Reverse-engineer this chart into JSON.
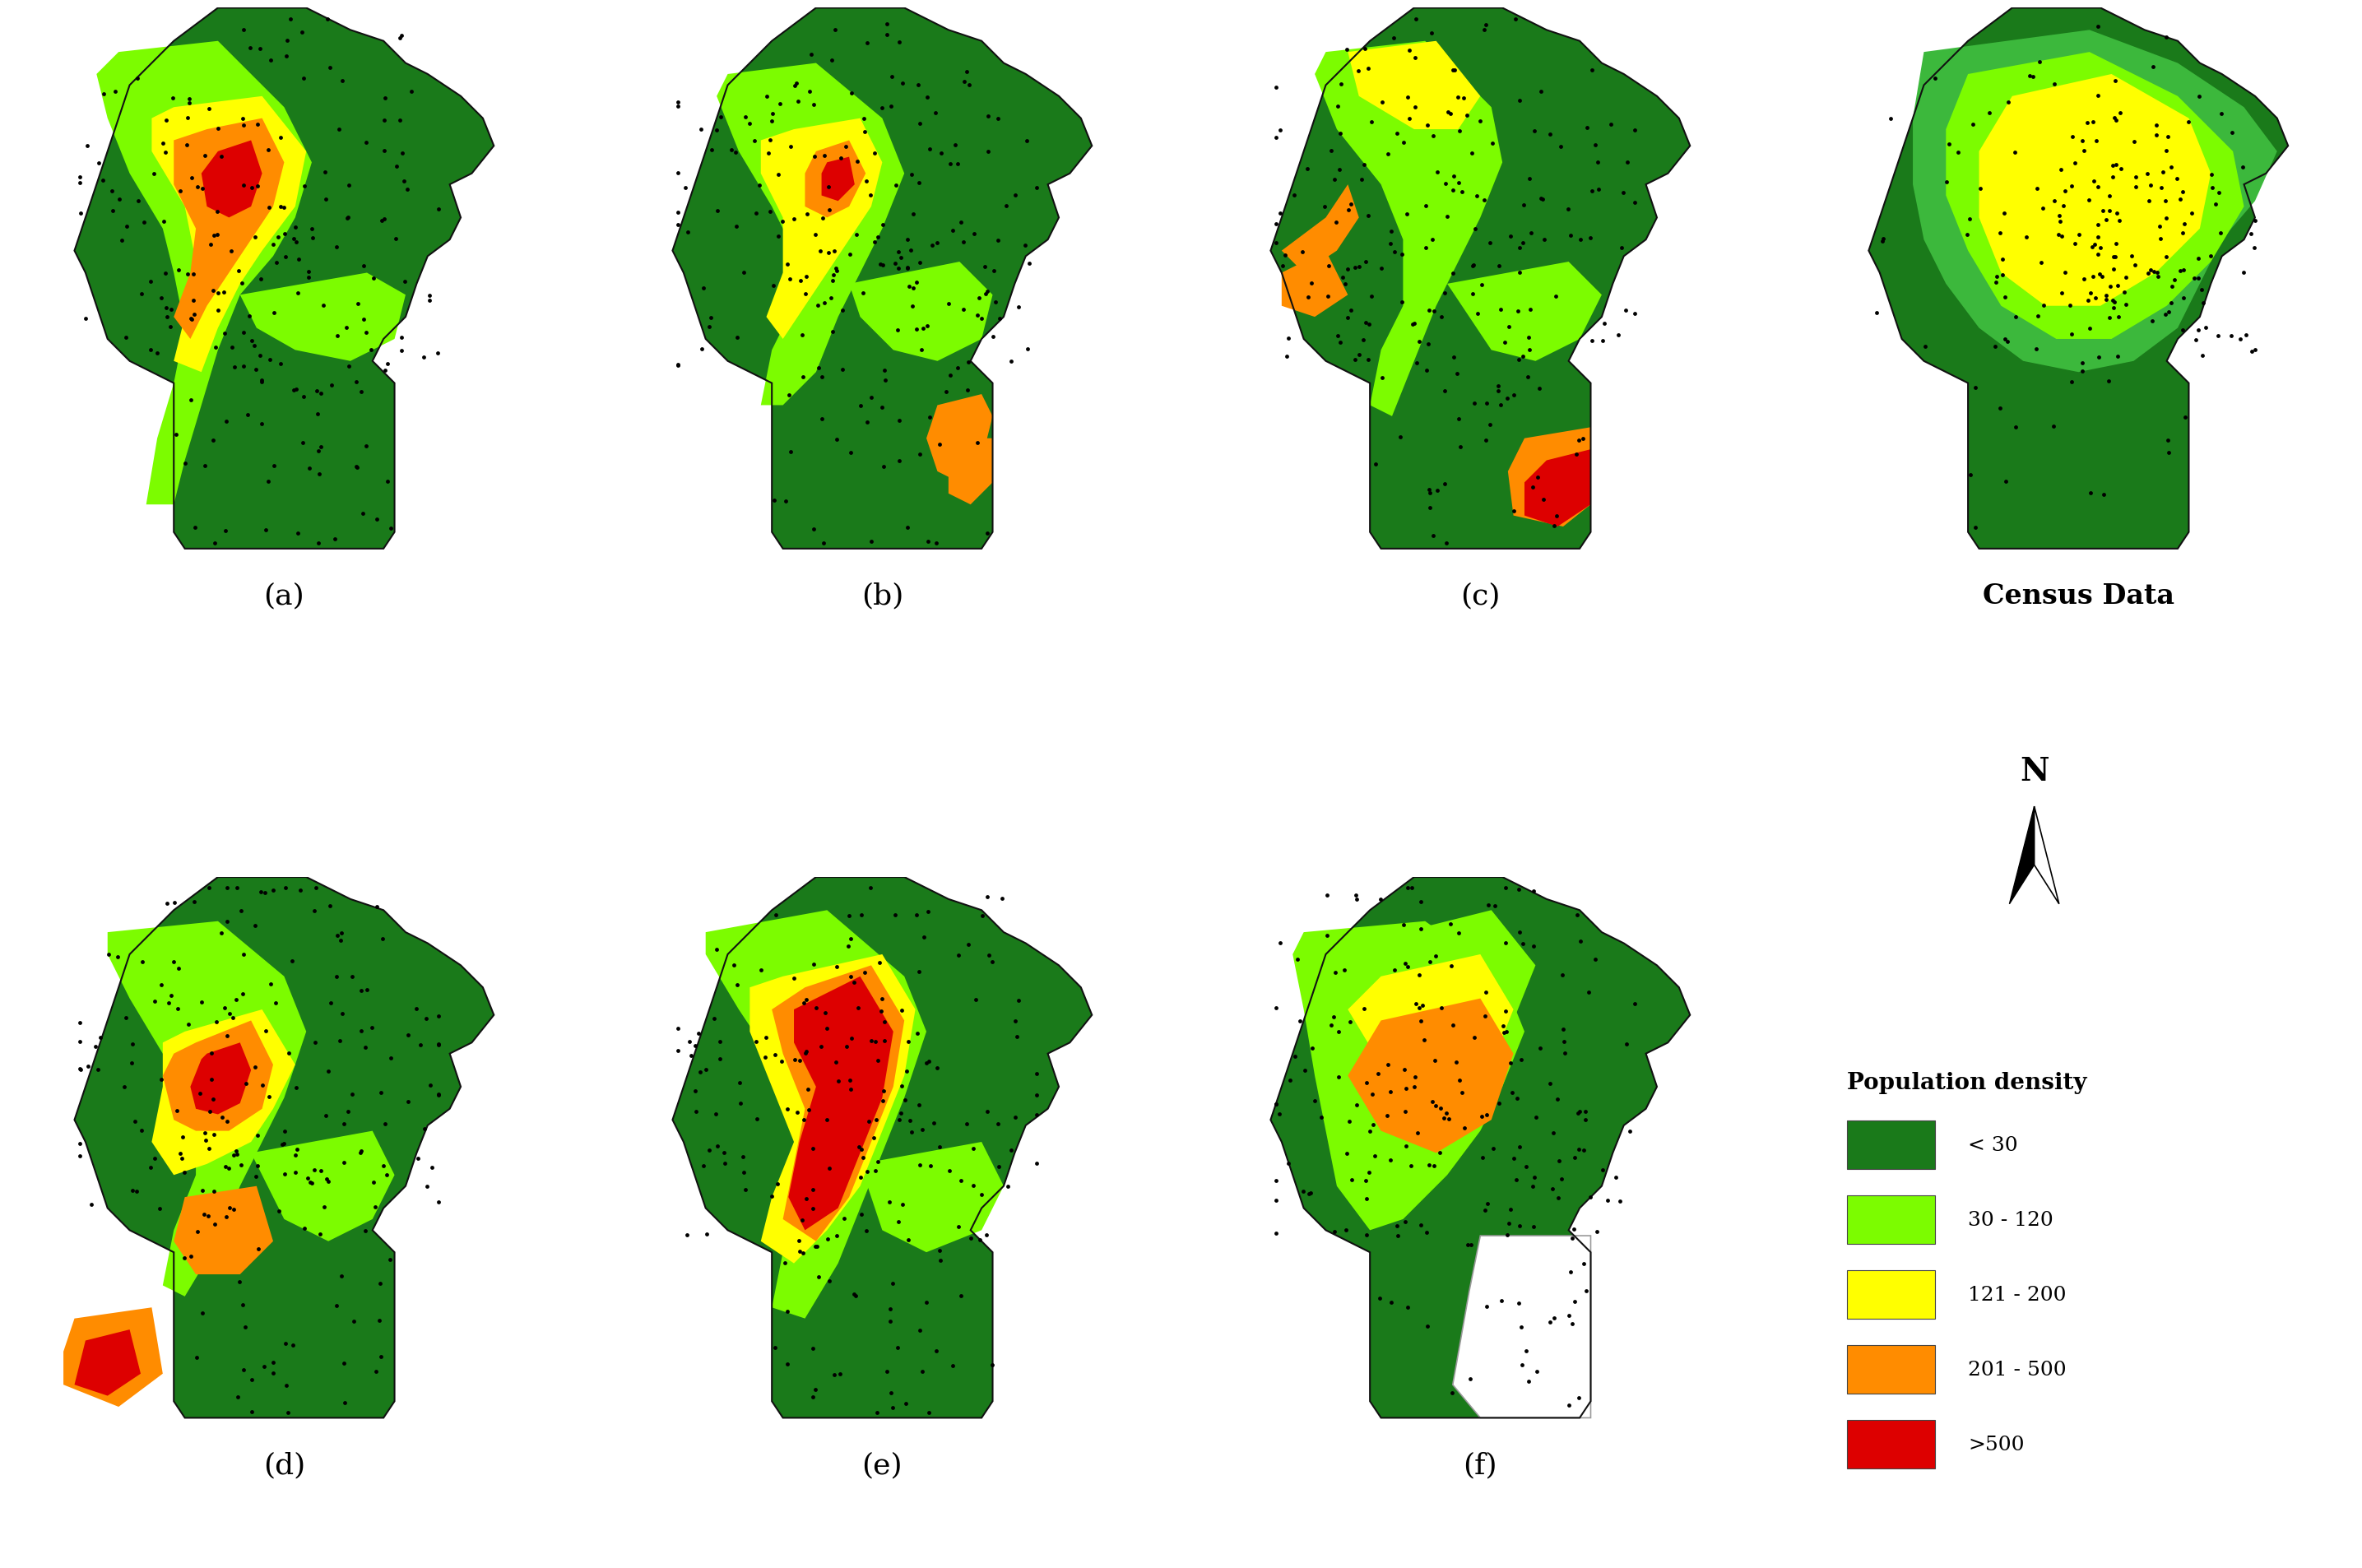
{
  "background_color": "#ffffff",
  "label_fontsize": 26,
  "legend_title": "Population density",
  "legend_items": [
    {
      "label": "< 30",
      "color": "#1a7a1a"
    },
    {
      "label": "30 - 120",
      "color": "#7CFC00"
    },
    {
      "label": "121 - 200",
      "color": "#FFFF00"
    },
    {
      "label": "201 - 500",
      "color": "#FF8C00"
    },
    {
      "label": ">500",
      "color": "#DD0000"
    }
  ],
  "dot_color": "#000000",
  "dot_size": 12,
  "north_arrow_label": "N",
  "map_dark_green": "#1a7a1a",
  "map_light_green": "#7CFC00",
  "map_med_green": "#3cb83c",
  "map_yellow": "#FFFF00",
  "map_orange": "#FF8C00",
  "map_red": "#DD0000"
}
